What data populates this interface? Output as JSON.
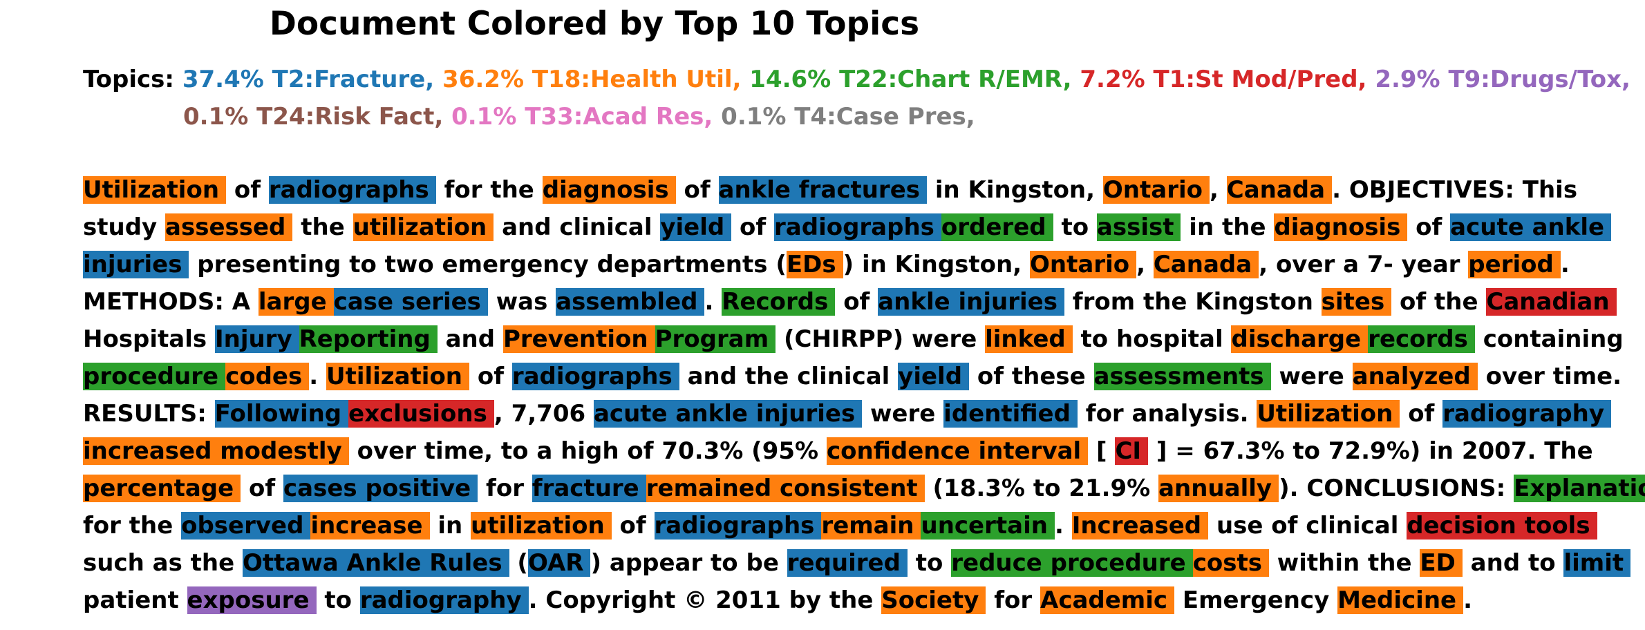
{
  "title": "Document Colored by Top 10 Topics",
  "legend": {
    "label": "Topics:",
    "rows": [
      [
        {
          "text": "37.4% T2:Fracture,",
          "color": "#1f77b4"
        },
        {
          "text": "36.2% T18:Health Util,",
          "color": "#ff7f0e"
        },
        {
          "text": "14.6% T22:Chart R/EMR,",
          "color": "#2ca02c"
        },
        {
          "text": "7.2% T1:St Mod/Pred,",
          "color": "#d62728"
        },
        {
          "text": "2.9% T9:Drugs/Tox,",
          "color": "#9467bd"
        }
      ],
      [
        {
          "text": "0.1% T24:Risk Fact,",
          "color": "#8c564b"
        },
        {
          "text": "0.1% T33:Acad Res,",
          "color": "#e377c2"
        },
        {
          "text": "0.1% T4:Case Pres,",
          "color": "#7f7f7f"
        }
      ]
    ]
  },
  "topic_colors": [
    "#1f77b4",
    "#ff7f0e",
    "#2ca02c",
    "#d62728",
    "#9467bd"
  ],
  "lines": [
    [
      [
        "Utilization",
        1
      ],
      [
        " of "
      ],
      [
        "radiographs",
        0
      ],
      [
        " for the "
      ],
      [
        "diagnosis",
        1
      ],
      [
        " of "
      ],
      [
        "ankle fractures",
        0
      ],
      [
        " in Kingston, "
      ],
      [
        "Ontario",
        1
      ],
      [
        ", "
      ],
      [
        "Canada",
        1
      ],
      [
        ". OBJECTIVES: This"
      ]
    ],
    [
      [
        "study "
      ],
      [
        "assessed",
        1
      ],
      [
        " the "
      ],
      [
        "utilization",
        1
      ],
      [
        " and clinical "
      ],
      [
        "yield",
        0
      ],
      [
        " of "
      ],
      [
        "radiographs",
        0
      ],
      [
        "ordered",
        2
      ],
      [
        " to "
      ],
      [
        "assist",
        2
      ],
      [
        " in the "
      ],
      [
        "diagnosis",
        1
      ],
      [
        " of "
      ],
      [
        "acute ankle",
        0
      ]
    ],
    [
      [
        "injuries",
        0
      ],
      [
        " presenting to two emergency departments ("
      ],
      [
        "EDs",
        1
      ],
      [
        ") in Kingston, "
      ],
      [
        "Ontario",
        1
      ],
      [
        ", "
      ],
      [
        "Canada",
        1
      ],
      [
        ", over a 7- year "
      ],
      [
        "period",
        1
      ],
      [
        "."
      ]
    ],
    [
      [
        "METHODS: A "
      ],
      [
        "large",
        1
      ],
      [
        "case series",
        0
      ],
      [
        " was "
      ],
      [
        "assembled",
        0
      ],
      [
        ". "
      ],
      [
        "Records",
        2
      ],
      [
        " of "
      ],
      [
        "ankle injuries",
        0
      ],
      [
        " from the Kingston "
      ],
      [
        "sites",
        1
      ],
      [
        " of the "
      ],
      [
        "Canadian",
        3
      ]
    ],
    [
      [
        "Hospitals "
      ],
      [
        "Injury",
        0
      ],
      [
        "Reporting",
        2
      ],
      [
        " and "
      ],
      [
        "Prevention",
        1
      ],
      [
        "Program",
        2
      ],
      [
        " (CHIRPP) were "
      ],
      [
        "linked",
        1
      ],
      [
        " to hospital "
      ],
      [
        "discharge",
        1
      ],
      [
        "records",
        2
      ],
      [
        " containing"
      ]
    ],
    [
      [
        "procedure",
        2
      ],
      [
        "codes",
        1
      ],
      [
        ". "
      ],
      [
        "Utilization",
        1
      ],
      [
        " of "
      ],
      [
        "radiographs",
        0
      ],
      [
        " and the clinical "
      ],
      [
        "yield",
        0
      ],
      [
        " of these "
      ],
      [
        "assessments",
        2
      ],
      [
        " were "
      ],
      [
        "analyzed",
        1
      ],
      [
        " over time."
      ]
    ],
    [
      [
        "RESULTS: "
      ],
      [
        "Following",
        0
      ],
      [
        "exclusions",
        3
      ],
      [
        ", 7,706 "
      ],
      [
        "acute ankle injuries",
        0
      ],
      [
        " were "
      ],
      [
        "identified",
        0
      ],
      [
        " for analysis. "
      ],
      [
        "Utilization",
        1
      ],
      [
        " of "
      ],
      [
        "radiography",
        0
      ]
    ],
    [
      [
        "increased modestly",
        1
      ],
      [
        " over time, to a high of 70.3% (95% "
      ],
      [
        "confidence interval",
        1
      ],
      [
        " [ "
      ],
      [
        "CI",
        3
      ],
      [
        " ] = 67.3% to 72.9%) in 2007. The"
      ]
    ],
    [
      [
        "percentage",
        1
      ],
      [
        " of "
      ],
      [
        "cases positive",
        0
      ],
      [
        " for "
      ],
      [
        "fracture",
        0
      ],
      [
        "remained consistent",
        1
      ],
      [
        " (18.3% to 21.9% "
      ],
      [
        "annually",
        1
      ],
      [
        "). CONCLUSIONS: "
      ],
      [
        "Explanations",
        2
      ]
    ],
    [
      [
        "for the "
      ],
      [
        "observed",
        0
      ],
      [
        "increase",
        1
      ],
      [
        " in "
      ],
      [
        "utilization",
        1
      ],
      [
        " of "
      ],
      [
        "radiographs",
        0
      ],
      [
        "remain",
        1
      ],
      [
        "uncertain",
        2
      ],
      [
        ". "
      ],
      [
        "Increased",
        1
      ],
      [
        " use of clinical "
      ],
      [
        "decision tools",
        3
      ]
    ],
    [
      [
        "such as the "
      ],
      [
        "Ottawa Ankle Rules",
        0
      ],
      [
        " ("
      ],
      [
        "OAR",
        0
      ],
      [
        ") appear to be "
      ],
      [
        "required",
        0
      ],
      [
        " to "
      ],
      [
        "reduce procedure",
        2
      ],
      [
        "costs",
        1
      ],
      [
        " within the "
      ],
      [
        "ED",
        1
      ],
      [
        " and to "
      ],
      [
        "limit",
        0
      ]
    ],
    [
      [
        "patient "
      ],
      [
        "exposure",
        4
      ],
      [
        " to "
      ],
      [
        "radiography",
        0
      ],
      [
        ". Copyright © 2011 by the "
      ],
      [
        "Society",
        1
      ],
      [
        " for "
      ],
      [
        "Academic",
        1
      ],
      [
        " Emergency "
      ],
      [
        "Medicine",
        1
      ],
      [
        "."
      ]
    ]
  ]
}
